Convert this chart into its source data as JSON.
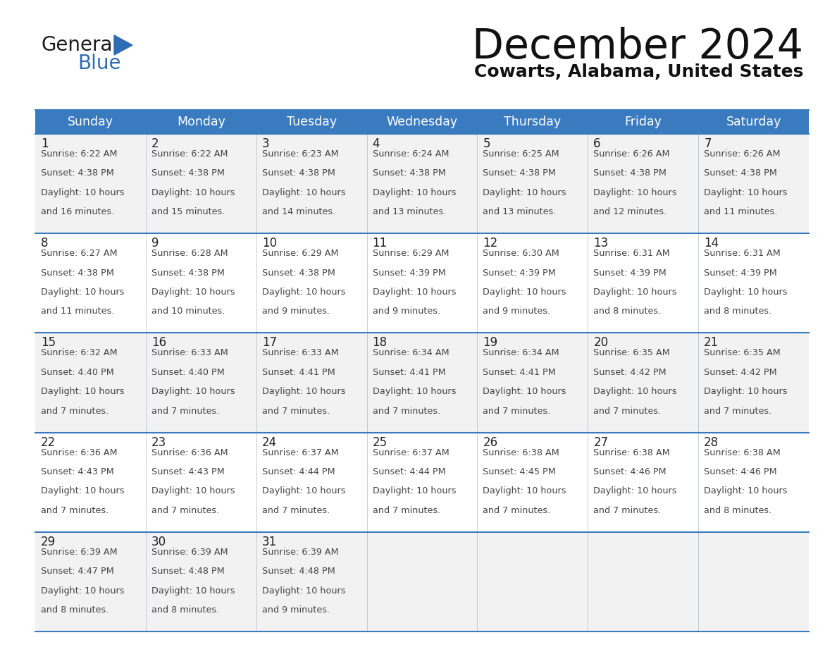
{
  "title": "December 2024",
  "subtitle": "Cowarts, Alabama, United States",
  "header_color": "#3a7bbf",
  "header_text_color": "#ffffff",
  "day_names": [
    "Sunday",
    "Monday",
    "Tuesday",
    "Wednesday",
    "Thursday",
    "Friday",
    "Saturday"
  ],
  "bg_color": "#ffffff",
  "row_bg_colors": [
    "#f2f2f2",
    "#ffffff",
    "#f2f2f2",
    "#ffffff",
    "#f2f2f2"
  ],
  "grid_line_color": "#3a7bbf",
  "day_num_color": "#222222",
  "cell_text_color": "#444444",
  "logo_general_color": "#1a1a1a",
  "logo_blue_color": "#2e6db4",
  "logo_triangle_color": "#2e6db4",
  "title_color": "#111111",
  "subtitle_color": "#111111",
  "weeks": [
    [
      {
        "day": 1,
        "sunrise": "6:22 AM",
        "sunset": "4:38 PM",
        "daylight_hours": 10,
        "daylight_minutes": 16
      },
      {
        "day": 2,
        "sunrise": "6:22 AM",
        "sunset": "4:38 PM",
        "daylight_hours": 10,
        "daylight_minutes": 15
      },
      {
        "day": 3,
        "sunrise": "6:23 AM",
        "sunset": "4:38 PM",
        "daylight_hours": 10,
        "daylight_minutes": 14
      },
      {
        "day": 4,
        "sunrise": "6:24 AM",
        "sunset": "4:38 PM",
        "daylight_hours": 10,
        "daylight_minutes": 13
      },
      {
        "day": 5,
        "sunrise": "6:25 AM",
        "sunset": "4:38 PM",
        "daylight_hours": 10,
        "daylight_minutes": 13
      },
      {
        "day": 6,
        "sunrise": "6:26 AM",
        "sunset": "4:38 PM",
        "daylight_hours": 10,
        "daylight_minutes": 12
      },
      {
        "day": 7,
        "sunrise": "6:26 AM",
        "sunset": "4:38 PM",
        "daylight_hours": 10,
        "daylight_minutes": 11
      }
    ],
    [
      {
        "day": 8,
        "sunrise": "6:27 AM",
        "sunset": "4:38 PM",
        "daylight_hours": 10,
        "daylight_minutes": 11
      },
      {
        "day": 9,
        "sunrise": "6:28 AM",
        "sunset": "4:38 PM",
        "daylight_hours": 10,
        "daylight_minutes": 10
      },
      {
        "day": 10,
        "sunrise": "6:29 AM",
        "sunset": "4:38 PM",
        "daylight_hours": 10,
        "daylight_minutes": 9
      },
      {
        "day": 11,
        "sunrise": "6:29 AM",
        "sunset": "4:39 PM",
        "daylight_hours": 10,
        "daylight_minutes": 9
      },
      {
        "day": 12,
        "sunrise": "6:30 AM",
        "sunset": "4:39 PM",
        "daylight_hours": 10,
        "daylight_minutes": 9
      },
      {
        "day": 13,
        "sunrise": "6:31 AM",
        "sunset": "4:39 PM",
        "daylight_hours": 10,
        "daylight_minutes": 8
      },
      {
        "day": 14,
        "sunrise": "6:31 AM",
        "sunset": "4:39 PM",
        "daylight_hours": 10,
        "daylight_minutes": 8
      }
    ],
    [
      {
        "day": 15,
        "sunrise": "6:32 AM",
        "sunset": "4:40 PM",
        "daylight_hours": 10,
        "daylight_minutes": 7
      },
      {
        "day": 16,
        "sunrise": "6:33 AM",
        "sunset": "4:40 PM",
        "daylight_hours": 10,
        "daylight_minutes": 7
      },
      {
        "day": 17,
        "sunrise": "6:33 AM",
        "sunset": "4:41 PM",
        "daylight_hours": 10,
        "daylight_minutes": 7
      },
      {
        "day": 18,
        "sunrise": "6:34 AM",
        "sunset": "4:41 PM",
        "daylight_hours": 10,
        "daylight_minutes": 7
      },
      {
        "day": 19,
        "sunrise": "6:34 AM",
        "sunset": "4:41 PM",
        "daylight_hours": 10,
        "daylight_minutes": 7
      },
      {
        "day": 20,
        "sunrise": "6:35 AM",
        "sunset": "4:42 PM",
        "daylight_hours": 10,
        "daylight_minutes": 7
      },
      {
        "day": 21,
        "sunrise": "6:35 AM",
        "sunset": "4:42 PM",
        "daylight_hours": 10,
        "daylight_minutes": 7
      }
    ],
    [
      {
        "day": 22,
        "sunrise": "6:36 AM",
        "sunset": "4:43 PM",
        "daylight_hours": 10,
        "daylight_minutes": 7
      },
      {
        "day": 23,
        "sunrise": "6:36 AM",
        "sunset": "4:43 PM",
        "daylight_hours": 10,
        "daylight_minutes": 7
      },
      {
        "day": 24,
        "sunrise": "6:37 AM",
        "sunset": "4:44 PM",
        "daylight_hours": 10,
        "daylight_minutes": 7
      },
      {
        "day": 25,
        "sunrise": "6:37 AM",
        "sunset": "4:44 PM",
        "daylight_hours": 10,
        "daylight_minutes": 7
      },
      {
        "day": 26,
        "sunrise": "6:38 AM",
        "sunset": "4:45 PM",
        "daylight_hours": 10,
        "daylight_minutes": 7
      },
      {
        "day": 27,
        "sunrise": "6:38 AM",
        "sunset": "4:46 PM",
        "daylight_hours": 10,
        "daylight_minutes": 7
      },
      {
        "day": 28,
        "sunrise": "6:38 AM",
        "sunset": "4:46 PM",
        "daylight_hours": 10,
        "daylight_minutes": 8
      }
    ],
    [
      {
        "day": 29,
        "sunrise": "6:39 AM",
        "sunset": "4:47 PM",
        "daylight_hours": 10,
        "daylight_minutes": 8
      },
      {
        "day": 30,
        "sunrise": "6:39 AM",
        "sunset": "4:48 PM",
        "daylight_hours": 10,
        "daylight_minutes": 8
      },
      {
        "day": 31,
        "sunrise": "6:39 AM",
        "sunset": "4:48 PM",
        "daylight_hours": 10,
        "daylight_minutes": 9
      },
      null,
      null,
      null,
      null
    ]
  ]
}
